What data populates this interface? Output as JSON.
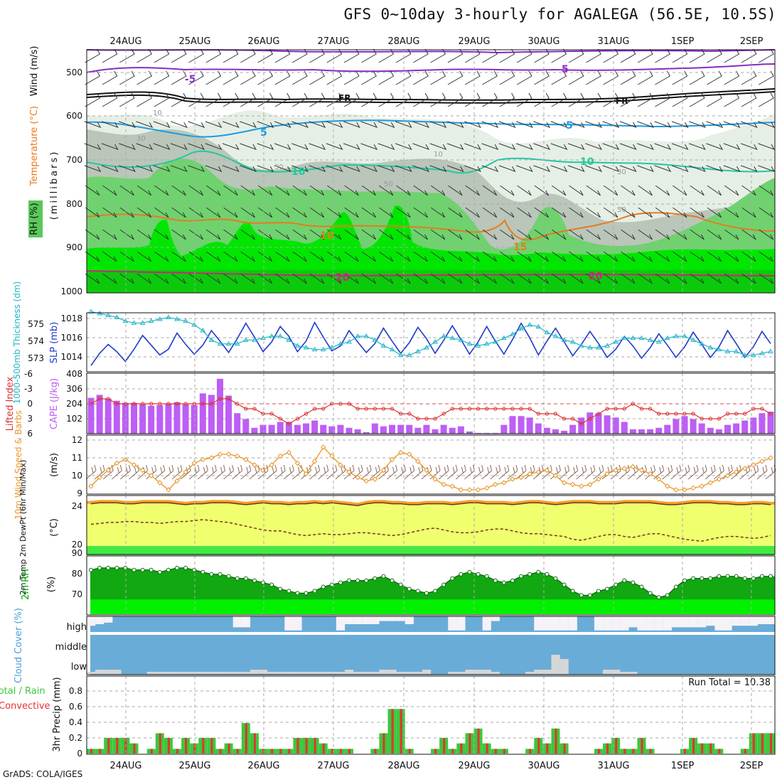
{
  "title": "GFS 0~10day 3-hourly for AGALEGA (56.5E, 10.5S)",
  "footer": "GrADS: COLA/IGES",
  "days": [
    "24AUG",
    "25AUG",
    "26AUG",
    "27AUG",
    "28AUG",
    "29AUG",
    "30AUG",
    "31AUG",
    "1SEP",
    "2SEP"
  ],
  "colors": {
    "rh_dark_green": "#00dc00",
    "rh_green": "#5ac85a",
    "rh_mid": "#a9b9a9",
    "rh_light": "#d8e6d8",
    "temp_orange": "#e87a1e",
    "temp_blue": "#1e9be0",
    "temp_teal": "#22c8a0",
    "temp_purple": "#8a28c8",
    "temp_magenta": "#c8287a",
    "slp": "#1e3cc8",
    "thickness": "#22b4c8",
    "cape": "#bd5ef5",
    "lifted": "#dc3232",
    "wind": "#e8962a",
    "temp2m_fill": "#f0ff6e",
    "temp2m_top": "#f5a028",
    "rh2m": "#00c800",
    "cloud": "#6aacd8",
    "cloud_clear": "#f5f2f8",
    "precip_total": "#3cc83c",
    "precip_conv": "#e63232"
  },
  "panels": {
    "upper": {
      "label_wind": "Wind (m/s)",
      "label_temp": "Temperature (°C)",
      "label_rh": "RH (%)",
      "axis_label": "(millibars)",
      "ticks": [
        "500",
        "600",
        "700",
        "800",
        "900",
        "1000"
      ],
      "contour_labels": [
        "-5",
        "5",
        "FR",
        "FR",
        "5",
        "5",
        "10",
        "10",
        "10",
        "15",
        "20",
        "20",
        "10",
        "10",
        "30",
        "30",
        "30",
        "50",
        "50"
      ]
    },
    "slp": {
      "label_thick": "1000-500mb Thickness (dm)",
      "label_slp": "SLP (mb)",
      "thick_ticks": [
        "575",
        "574",
        "573"
      ],
      "slp_ticks": [
        "1018",
        "1016",
        "1014"
      ]
    },
    "cape": {
      "label_li": "Lifted Index",
      "label_cape": "CAPE (J/kg)",
      "li_ticks": [
        "-6",
        "-3",
        "0",
        "3",
        "6"
      ],
      "cape_ticks": [
        "408",
        "306",
        "204",
        "102"
      ]
    },
    "wind": {
      "label": "10m Wind Speed & Barbs",
      "unit": "(m/s)",
      "ticks": [
        "12",
        "11",
        "10",
        "9"
      ]
    },
    "temp2m": {
      "label": "2m Temp 2m DewPt (6hr Min/Max)",
      "unit": "(°C)",
      "ticks": [
        "24",
        "20"
      ]
    },
    "rh2m": {
      "label": "2m RH",
      "unit": "(%)",
      "ticks": [
        "90",
        "80",
        "70"
      ]
    },
    "cloud": {
      "label": "Cloud Cover (%)",
      "levels": [
        "high",
        "middle",
        "low"
      ]
    },
    "precip": {
      "label_total": "Total / Rain",
      "label_conv": "Convective",
      "axis_label": "3hr Precip (mm)",
      "run_total": "Run Total = 10.38",
      "ticks": [
        "0.8",
        "0.6",
        "0.4",
        "0.2",
        "0"
      ]
    }
  },
  "chart_data": [
    {
      "type": "line",
      "title": "1000-500mb Thickness (dm) / SLP (mb)",
      "ylim_slp": [
        1012,
        1019
      ],
      "ylim_thickness": [
        572.5,
        575.5
      ],
      "series": [
        {
          "name": "SLP",
          "values": [
            1012.6,
            1014.1,
            1015.2,
            1014.3,
            1013.1,
            1014.6,
            1016.3,
            1015.1,
            1013.9,
            1014.6,
            1016.6,
            1015.2,
            1014.0,
            1015.1,
            1016.9,
            1015.6,
            1014.2,
            1015.9,
            1017.8,
            1016.1,
            1014.3,
            1015.5,
            1017.4,
            1016.2,
            1014.3,
            1015.6,
            1017.9,
            1016.1,
            1014.4,
            1015.0,
            1016.9,
            1015.5,
            1014.2,
            1015.3,
            1017.2,
            1015.6,
            1014.1,
            1015.4,
            1017.3,
            1015.9,
            1014.1,
            1015.7,
            1017.5,
            1015.8,
            1014.0,
            1015.5,
            1017.4,
            1015.6,
            1014.0,
            1015.8,
            1017.8,
            1016.0,
            1013.9,
            1015.6,
            1017.2,
            1015.5,
            1013.8,
            1015.2,
            1016.8,
            1015.3,
            1013.6,
            1014.6,
            1016.2,
            1015.0,
            1013.5,
            1014.8,
            1016.5,
            1015.1,
            1013.6,
            1014.9,
            1016.7,
            1015.2,
            1013.6,
            1014.9,
            1016.9,
            1015.3,
            1013.6,
            1014.9,
            1016.8,
            1015.3
          ]
        },
        {
          "name": "1000-500mb Thickness",
          "values": [
            575.6,
            575.5,
            575.4,
            575.3,
            575.1,
            575.0,
            575.0,
            575.1,
            575.2,
            575.3,
            575.2,
            575.1,
            574.9,
            574.6,
            574.1,
            573.9,
            573.9,
            573.9,
            574.1,
            574.1,
            574.2,
            574.3,
            574.3,
            574.1,
            573.8,
            573.7,
            573.6,
            573.6,
            573.7,
            573.9,
            574.0,
            574.3,
            574.3,
            574.1,
            573.8,
            573.6,
            573.3,
            573.3,
            573.5,
            573.7,
            574.0,
            574.3,
            574.2,
            574.1,
            573.9,
            573.8,
            573.9,
            574.0,
            574.2,
            574.4,
            574.7,
            574.9,
            574.8,
            574.5,
            574.3,
            574.1,
            574.0,
            573.8,
            573.7,
            573.7,
            573.8,
            574.0,
            574.2,
            574.2,
            574.2,
            574.1,
            574.0,
            574.2,
            574.3,
            574.3,
            574.1,
            573.9,
            573.7,
            573.6,
            573.5,
            573.5,
            573.3,
            573.3,
            573.4,
            573.5
          ]
        }
      ]
    },
    {
      "type": "bar",
      "title": "CAPE (J/kg) / Lifted Index",
      "ylim_cape": [
        0,
        408
      ],
      "ylim_li": [
        6,
        -6
      ],
      "series": [
        {
          "name": "CAPE",
          "values": [
            245,
            265,
            240,
            225,
            210,
            210,
            200,
            190,
            195,
            205,
            215,
            200,
            195,
            275,
            265,
            375,
            260,
            140,
            100,
            40,
            60,
            60,
            80,
            80,
            60,
            70,
            90,
            60,
            50,
            60,
            40,
            30,
            10,
            70,
            50,
            60,
            60,
            60,
            40,
            60,
            30,
            60,
            40,
            50,
            15,
            5,
            5,
            5,
            60,
            120,
            120,
            110,
            70,
            40,
            30,
            20,
            60,
            110,
            145,
            140,
            125,
            110,
            80,
            30,
            30,
            30,
            40,
            60,
            100,
            120,
            100,
            70,
            40,
            30,
            60,
            70,
            90,
            110,
            140,
            150
          ]
        },
        {
          "name": "Lifted Index",
          "values": [
            0,
            -1,
            -1,
            0,
            0,
            0,
            0,
            0,
            0,
            0,
            0,
            0,
            0,
            0,
            0,
            -1,
            -1,
            0,
            1,
            1,
            2,
            2,
            3,
            4,
            3,
            2,
            1,
            1,
            0,
            0,
            0,
            1,
            1,
            1,
            1,
            1,
            2,
            2,
            3,
            3,
            3,
            2,
            1,
            1,
            1,
            1,
            1,
            1,
            1,
            1,
            1,
            1,
            2,
            2,
            2,
            3,
            3,
            4,
            3,
            2,
            1,
            1,
            1,
            0,
            1,
            1,
            2,
            2,
            2,
            2,
            2,
            3,
            3,
            3,
            2,
            2,
            2,
            1,
            1,
            2
          ]
        }
      ]
    },
    {
      "type": "line",
      "title": "10m Wind Speed & Barbs (m/s)",
      "ylim": [
        9,
        12
      ],
      "series": [
        {
          "name": "10m Wind Speed",
          "values": [
            9.4,
            9.9,
            10.3,
            10.7,
            10.9,
            10.6,
            10.3,
            10.0,
            9.6,
            9.2,
            9.7,
            10.2,
            10.7,
            10.9,
            11.0,
            11.2,
            11.2,
            11.1,
            10.9,
            10.6,
            10.3,
            10.6,
            11.1,
            11.3,
            10.7,
            10.1,
            10.8,
            11.6,
            11.1,
            10.6,
            10.2,
            9.9,
            9.7,
            9.8,
            10.3,
            10.9,
            11.3,
            11.2,
            10.8,
            10.3,
            9.8,
            9.5,
            9.4,
            9.2,
            9.2,
            9.2,
            9.3,
            9.5,
            9.6,
            9.8,
            9.9,
            10.1,
            10.2,
            10.3,
            10.0,
            9.6,
            9.5,
            9.4,
            9.5,
            9.8,
            10.1,
            10.3,
            10.4,
            10.5,
            10.3,
            10.1,
            9.8,
            9.4,
            9.2,
            9.2,
            9.3,
            9.4,
            9.6,
            9.8,
            10.0,
            10.2,
            10.4,
            10.6,
            10.8,
            11.0
          ]
        }
      ]
    },
    {
      "type": "area",
      "title": "2m Temp / 2m DewPt (°C)",
      "ylim": [
        19,
        25
      ],
      "series": [
        {
          "name": "2m Temp",
          "values": [
            24.5,
            24.6,
            24.6,
            24.6,
            24.5,
            24.5,
            24.6,
            24.6,
            24.6,
            24.6,
            24.5,
            24.4,
            24.5,
            24.5,
            24.6,
            24.6,
            24.6,
            24.5,
            24.4,
            24.5,
            24.6,
            24.5,
            24.5,
            24.4,
            24.5,
            24.5,
            24.6,
            24.5,
            24.6,
            24.5,
            24.4,
            24.3,
            24.5,
            24.6,
            24.6,
            24.5,
            24.5,
            24.4,
            24.4,
            24.5,
            24.5,
            24.5,
            24.4,
            24.5,
            24.6,
            24.6,
            24.5,
            24.5,
            24.5,
            24.4,
            24.5,
            24.6,
            24.6,
            24.5,
            24.4,
            24.5,
            24.6,
            24.6,
            24.6,
            24.5,
            24.5,
            24.5,
            24.6,
            24.6,
            24.6,
            24.6,
            24.5,
            24.4,
            24.4,
            24.5,
            24.6,
            24.6,
            24.6,
            24.5,
            24.5,
            24.4,
            24.4,
            24.5,
            24.5,
            24.4
          ]
        },
        {
          "name": "2m DewPt",
          "values": [
            22.3,
            22.4,
            22.5,
            22.5,
            22.6,
            22.6,
            22.5,
            22.5,
            22.4,
            22.5,
            22.6,
            22.6,
            22.7,
            22.8,
            22.7,
            22.6,
            22.5,
            22.3,
            22.1,
            21.9,
            21.7,
            21.6,
            21.6,
            21.4,
            21.2,
            21.1,
            21.2,
            21.3,
            21.2,
            21.2,
            21.3,
            21.4,
            21.4,
            21.3,
            21.2,
            21.1,
            21.2,
            21.4,
            21.6,
            21.8,
            21.9,
            21.7,
            21.5,
            21.4,
            21.4,
            21.5,
            21.7,
            21.8,
            21.8,
            21.6,
            21.4,
            21.3,
            21.3,
            21.2,
            21.1,
            21.0,
            20.7,
            20.6,
            20.8,
            21.0,
            21.2,
            21.2,
            21.0,
            20.9,
            21.1,
            21.3,
            21.3,
            21.1,
            20.9,
            20.7,
            20.6,
            20.5,
            20.7,
            20.9,
            21.0,
            21.0,
            20.9,
            20.8,
            20.9,
            21.1
          ]
        }
      ]
    },
    {
      "type": "area",
      "title": "2m RH (%)",
      "ylim": [
        63,
        90
      ],
      "series": [
        {
          "name": "2m RH",
          "values": [
            84,
            85,
            85,
            85,
            85,
            84,
            84,
            84,
            83,
            84,
            85,
            85,
            84,
            83,
            82,
            82,
            81,
            80,
            80,
            79,
            78,
            77,
            75,
            74,
            73,
            73,
            74,
            76,
            77,
            78,
            79,
            79,
            79,
            80,
            81,
            79,
            77,
            75,
            74,
            73,
            74,
            77,
            80,
            82,
            83,
            82,
            81,
            79,
            78,
            79,
            81,
            82,
            83,
            82,
            80,
            77,
            74,
            72,
            72,
            74,
            75,
            77,
            79,
            78,
            76,
            73,
            71,
            72,
            76,
            79,
            80,
            80,
            80,
            81,
            81,
            81,
            80,
            80,
            81,
            81
          ]
        }
      ]
    },
    {
      "type": "bar",
      "title": "3hr Precip (mm)",
      "run_total": 10.38,
      "ylim": [
        0,
        1.0
      ],
      "series": [
        {
          "name": "Total / Rain",
          "values": [
            0.06,
            0.06,
            0.2,
            0.2,
            0.2,
            0.13,
            0,
            0.06,
            0.26,
            0.2,
            0.06,
            0.2,
            0.13,
            0.2,
            0.2,
            0.06,
            0.13,
            0.06,
            0.39,
            0.26,
            0.06,
            0.06,
            0.06,
            0.06,
            0.2,
            0.2,
            0.2,
            0.13,
            0.06,
            0.06,
            0.06,
            0,
            0,
            0.06,
            0.26,
            0.57,
            0.57,
            0.06,
            0,
            0,
            0.06,
            0.2,
            0.06,
            0.13,
            0.26,
            0.32,
            0.13,
            0.06,
            0.06,
            0,
            0,
            0.06,
            0.2,
            0.13,
            0.32,
            0.13,
            0,
            0,
            0,
            0.06,
            0.13,
            0.2,
            0.06,
            0.06,
            0.2,
            0.06,
            0,
            0,
            0,
            0.06,
            0.2,
            0.13,
            0.13,
            0.06,
            0,
            0,
            0.06,
            0.26,
            0.26,
            0.26
          ]
        },
        {
          "name": "Convective",
          "values": [
            0.06,
            0.06,
            0.2,
            0.2,
            0.2,
            0.13,
            0,
            0.06,
            0.26,
            0.2,
            0.06,
            0.2,
            0.13,
            0.2,
            0.2,
            0.06,
            0.13,
            0.06,
            0.39,
            0.26,
            0.06,
            0.06,
            0.06,
            0.06,
            0.2,
            0.2,
            0.2,
            0.13,
            0.06,
            0.06,
            0.06,
            0,
            0,
            0.06,
            0.26,
            0.57,
            0.57,
            0.06,
            0,
            0,
            0.06,
            0.2,
            0.06,
            0.13,
            0.26,
            0.32,
            0.13,
            0.06,
            0.06,
            0,
            0,
            0.06,
            0.2,
            0.13,
            0.32,
            0.13,
            0,
            0,
            0,
            0.06,
            0.13,
            0.2,
            0.06,
            0.06,
            0.2,
            0.06,
            0,
            0,
            0,
            0.06,
            0.2,
            0.13,
            0.13,
            0.06,
            0,
            0,
            0.06,
            0.26,
            0.26,
            0.26
          ]
        }
      ]
    }
  ]
}
